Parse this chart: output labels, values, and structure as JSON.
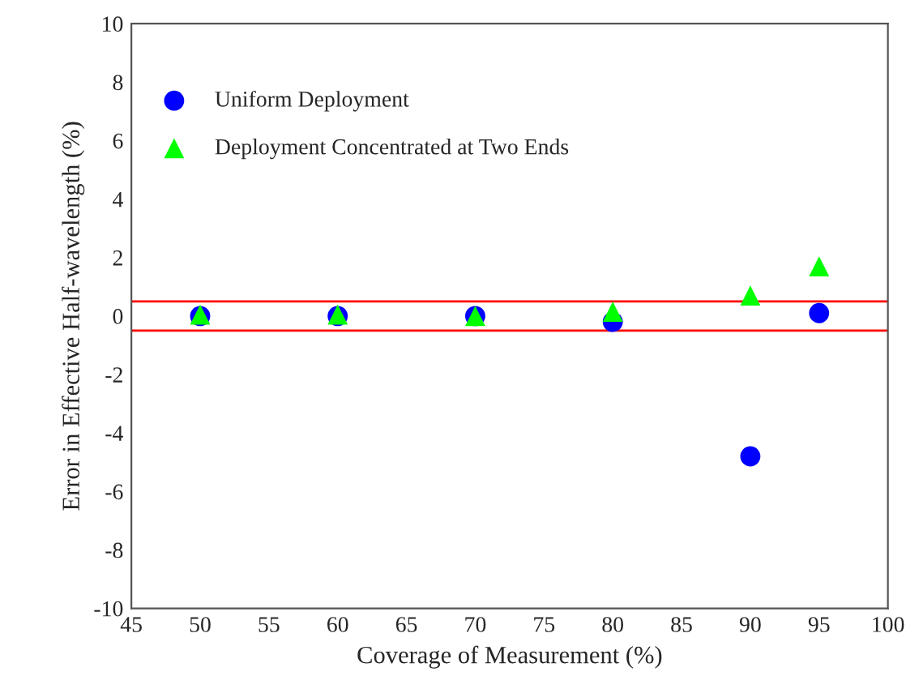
{
  "chart_data": {
    "type": "scatter",
    "xlabel": "Coverage of Measurement (%)",
    "ylabel": "Error in Effective Half-wavelength (%)",
    "x": [
      50,
      60,
      70,
      80,
      90,
      95
    ],
    "series": [
      {
        "name": "Uniform Deployment",
        "color": "#0000ff",
        "marker": "circle",
        "values": [
          0,
          0,
          0,
          -0.2,
          -4.8,
          0.1
        ]
      },
      {
        "name": "Deployment Concentrated at Two Ends",
        "color": "#00ff00",
        "marker": "triangle",
        "values": [
          0.05,
          0.05,
          0,
          0.15,
          0.7,
          1.7
        ]
      }
    ],
    "ref_lines": [
      {
        "axis": "y",
        "value": 0.5,
        "color": "#ff0000"
      },
      {
        "axis": "y",
        "value": -0.5,
        "color": "#ff0000"
      }
    ],
    "xlim": [
      45,
      100
    ],
    "xticks": [
      45,
      50,
      55,
      60,
      65,
      70,
      75,
      80,
      85,
      90,
      95,
      100
    ],
    "ylim": [
      -10,
      10
    ],
    "yticks": [
      -10,
      -8,
      -6,
      -4,
      -2,
      0,
      2,
      4,
      6,
      8,
      10
    ],
    "grid": false,
    "legend": "top left"
  }
}
